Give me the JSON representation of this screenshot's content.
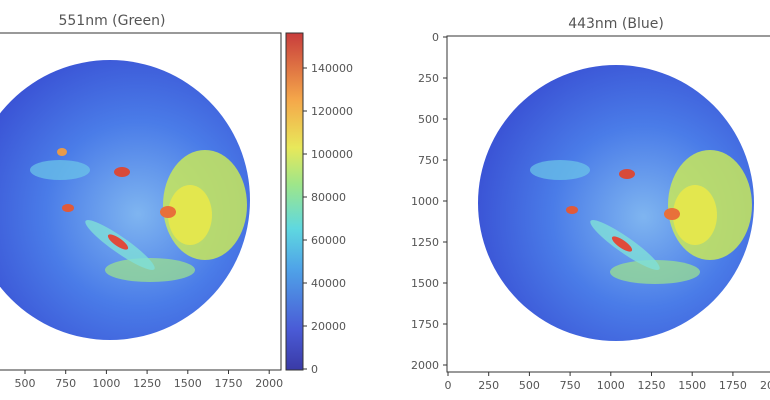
{
  "chart_data": [
    {
      "type": "heatmap",
      "title": "551nm (Green)",
      "xlabel": "",
      "ylabel": "",
      "x_ticks": [
        "500",
        "750",
        "1000",
        "1250",
        "1500",
        "1750",
        "2000"
      ],
      "y_ticks": [],
      "xlim": [
        250,
        2050
      ],
      "ylim": [
        2050,
        0
      ],
      "colormap": "jet",
      "colorbar": {
        "ticks": [
          "0",
          "20000",
          "40000",
          "60000",
          "80000",
          "100000",
          "120000",
          "140000"
        ],
        "range": [
          0,
          155000
        ]
      }
    },
    {
      "type": "heatmap",
      "title": "443nm (Blue)",
      "xlabel": "",
      "ylabel": "",
      "x_ticks": [
        "0",
        "250",
        "500",
        "750",
        "1000",
        "1250",
        "1500",
        "1750",
        "20"
      ],
      "y_ticks": [
        "0",
        "250",
        "500",
        "750",
        "1000",
        "1250",
        "1500",
        "1750",
        "2000"
      ],
      "xlim": [
        0,
        2050
      ],
      "ylim": [
        2050,
        0
      ],
      "colormap": "jet"
    }
  ]
}
